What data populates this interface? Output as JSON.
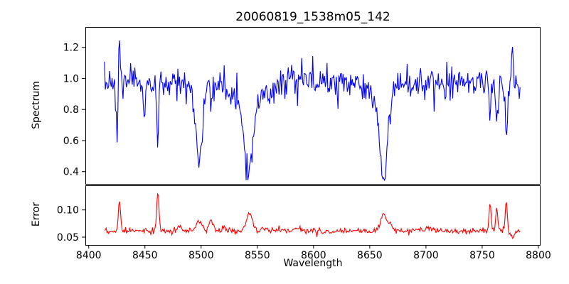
{
  "figure": {
    "background": "#ffffff",
    "spine_color": "#000000",
    "tick_color": "#000000",
    "text_color": "#000000"
  },
  "chart_data": [
    {
      "type": "line",
      "title": "20060819_1538m05_142",
      "ylabel": "Spectrum",
      "series_name": "spectrum",
      "color": "#0000ff",
      "line_width": 1.1,
      "xlim": [
        8397,
        8801.3
      ],
      "ylim": [
        0.321,
        1.331
      ],
      "yticks": [
        0.4,
        0.6,
        0.8,
        1.0,
        1.2
      ],
      "ytick_labels": [
        "0.4",
        "0.6",
        "0.8",
        "1.0",
        "1.2"
      ],
      "xticks": [],
      "xtick_labels": [],
      "x_start": 8414,
      "x_end": 8784,
      "x_step": 0.75,
      "continuum": 0.97,
      "noise_sigma": 0.05,
      "seed": 7,
      "clamp": [
        0.345,
        1.3
      ],
      "absorption_lines": [
        {
          "center": 8498.0,
          "depth": 0.4,
          "sigma": 2.8
        },
        {
          "center": 8498.0,
          "depth": 0.06,
          "sigma": 8.0
        },
        {
          "center": 8542.1,
          "depth": 0.5,
          "sigma": 4.0
        },
        {
          "center": 8542.1,
          "depth": 0.1,
          "sigma": 12.0
        },
        {
          "center": 8662.1,
          "depth": 0.55,
          "sigma": 3.2
        },
        {
          "center": 8662.1,
          "depth": 0.08,
          "sigma": 10.0
        }
      ],
      "spikes": [
        {
          "center": 8425.3,
          "amp": -0.33,
          "sigma": 0.8
        },
        {
          "center": 8427.3,
          "amp": 0.3,
          "sigma": 0.8
        },
        {
          "center": 8449.0,
          "amp": -0.28,
          "sigma": 0.8
        },
        {
          "center": 8461.5,
          "amp": -0.4,
          "sigma": 0.8
        },
        {
          "center": 8757.0,
          "amp": -0.27,
          "sigma": 0.8
        },
        {
          "center": 8763.0,
          "amp": -0.22,
          "sigma": 0.8
        },
        {
          "center": 8771.5,
          "amp": -0.31,
          "sigma": 0.9
        },
        {
          "center": 8777.0,
          "amp": 0.22,
          "sigma": 0.8
        }
      ]
    },
    {
      "type": "line",
      "ylabel": "Error",
      "xlabel": "Wavelength",
      "series_name": "error",
      "color": "#ff0000",
      "line_width": 1.1,
      "xlim": [
        8397,
        8801.3
      ],
      "ylim": [
        0.0356,
        0.1453
      ],
      "yticks": [
        0.05,
        0.1
      ],
      "ytick_labels": [
        "0.05",
        "0.10"
      ],
      "xticks": [
        8400,
        8450,
        8500,
        8550,
        8600,
        8650,
        8700,
        8750,
        8800
      ],
      "xtick_labels": [
        "8400",
        "8450",
        "8500",
        "8550",
        "8600",
        "8650",
        "8700",
        "8750",
        "8800"
      ],
      "x_start": 8414,
      "x_end": 8784,
      "x_step": 0.75,
      "continuum": 0.061,
      "noise_sigma": 0.0024,
      "seed": 99,
      "clamp": [
        0.0455,
        0.139
      ],
      "absorption_lines": [],
      "spikes": [
        {
          "center": 8427.3,
          "amp": 0.057,
          "sigma": 1.0
        },
        {
          "center": 8461.5,
          "amp": 0.074,
          "sigma": 1.0
        },
        {
          "center": 8481.0,
          "amp": 0.008,
          "sigma": 2.0
        },
        {
          "center": 8498.0,
          "amp": 0.02,
          "sigma": 2.5
        },
        {
          "center": 8509.0,
          "amp": 0.018,
          "sigma": 2.0
        },
        {
          "center": 8520.0,
          "amp": 0.011,
          "sigma": 1.5
        },
        {
          "center": 8543.0,
          "amp": 0.033,
          "sigma": 2.8
        },
        {
          "center": 8556.0,
          "amp": 0.008,
          "sigma": 2.0
        },
        {
          "center": 8586.0,
          "amp": 0.006,
          "sigma": 3.0
        },
        {
          "center": 8662.0,
          "amp": 0.031,
          "sigma": 2.5
        },
        {
          "center": 8668.0,
          "amp": 0.015,
          "sigma": 2.0
        },
        {
          "center": 8700.0,
          "amp": 0.004,
          "sigma": 10.0
        },
        {
          "center": 8757.0,
          "amp": 0.05,
          "sigma": 0.9
        },
        {
          "center": 8763.0,
          "amp": 0.043,
          "sigma": 0.9
        },
        {
          "center": 8771.5,
          "amp": 0.055,
          "sigma": 0.9
        },
        {
          "center": 8777.0,
          "amp": -0.012,
          "sigma": 1.5
        }
      ]
    }
  ]
}
